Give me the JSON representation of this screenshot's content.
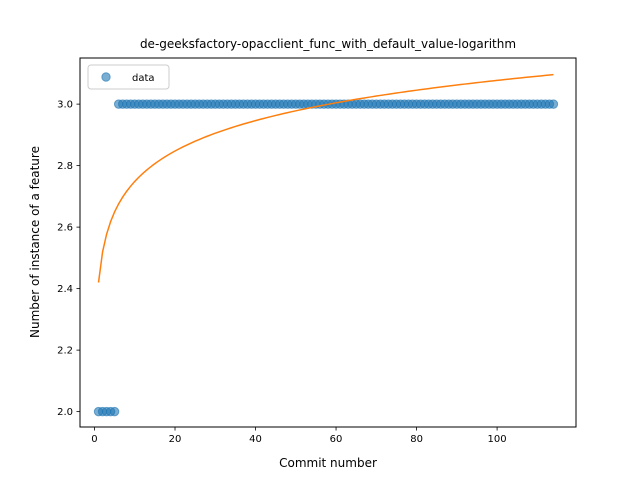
{
  "chart_data": {
    "type": "scatter",
    "title": "de-geeksfactory-opacclient_func_with_default_value-logarithm",
    "xlabel": "Commit number",
    "ylabel": "Number of instance of a feature",
    "xlim": [
      -3.6,
      119.6
    ],
    "ylim": [
      1.95,
      3.15
    ],
    "x_ticks": [
      0,
      20,
      40,
      60,
      80,
      100
    ],
    "y_ticks": [
      2.0,
      2.2,
      2.4,
      2.6,
      2.8,
      3.0
    ],
    "x_tick_labels": [
      "0",
      "20",
      "40",
      "60",
      "80",
      "100"
    ],
    "y_tick_labels": [
      "2.0",
      "2.2",
      "2.4",
      "2.6",
      "2.8",
      "3.0"
    ],
    "legend": {
      "placement": "top-left",
      "entries": [
        "data"
      ]
    },
    "grid": false,
    "series": [
      {
        "name": "data",
        "kind": "scatter",
        "color": "#1f77b4",
        "segments": [
          {
            "x_start": 1,
            "x_end": 5,
            "y": 2.0
          },
          {
            "x_start": 6,
            "x_end": 114,
            "y": 3.0
          }
        ]
      },
      {
        "kind": "line",
        "color": "#ff7f0e",
        "fit": {
          "form": "a + b*ln(x)",
          "a": 2.42,
          "b": 0.1427
        },
        "x_range": [
          1,
          114
        ]
      }
    ]
  }
}
